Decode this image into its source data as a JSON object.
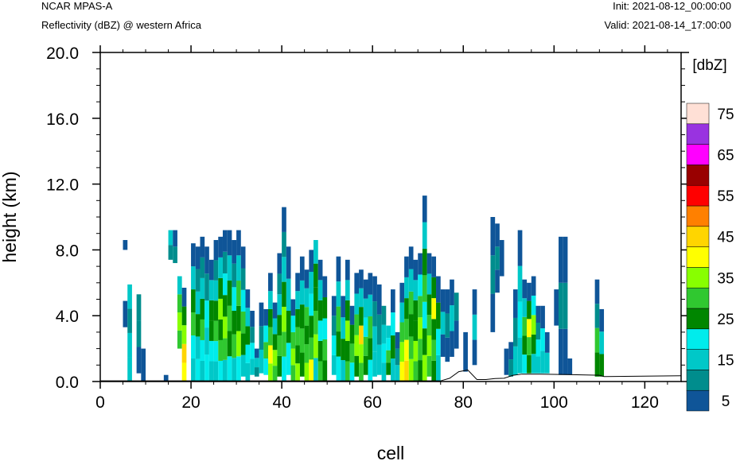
{
  "header": {
    "model": "NCAR MPAS-A",
    "field": "Reflectivity (dBZ) @ western Africa",
    "init": "Init: 2021-08-12_00:00:00",
    "valid": "Valid: 2021-08-14_17:00:00"
  },
  "chart_data": {
    "type": "heatmap",
    "xlabel": "cell",
    "ylabel": "height (km)",
    "xlim": [
      0,
      128
    ],
    "ylim": [
      0,
      20
    ],
    "x_ticks": [
      0,
      20,
      40,
      60,
      80,
      100,
      120
    ],
    "x_tick_labels": [
      "0",
      "20",
      "40",
      "60",
      "80",
      "100",
      "120"
    ],
    "y_ticks": [
      0,
      4,
      8,
      12,
      16,
      20
    ],
    "y_tick_labels": [
      "0.0",
      "4.0",
      "8.0",
      "12.0",
      "16.0",
      "20.0"
    ],
    "colorbar": {
      "title": "[dbZ]",
      "bounds": [
        5,
        75
      ],
      "step": 5,
      "labels": [
        "5",
        "15",
        "25",
        "35",
        "45",
        "55",
        "65",
        "75"
      ],
      "colors": [
        "#0f5598",
        "#008d8d",
        "#00c8c8",
        "#00ecec",
        "#008600",
        "#30c830",
        "#88ff00",
        "#ffff00",
        "#ffd500",
        "#ff8000",
        "#ff0000",
        "#990000",
        "#ff00ff",
        "#9933e0",
        "#ffe0d6"
      ]
    },
    "columns": [
      {
        "x": 5,
        "bottom": 3.3,
        "top": 4.9,
        "levels": [
          0
        ]
      },
      {
        "x": 5,
        "bottom": 8.0,
        "top": 8.6,
        "levels": [
          0
        ]
      },
      {
        "x": 6,
        "bottom": 0.0,
        "top": 5.9,
        "levels": [
          2,
          2,
          1,
          2
        ]
      },
      {
        "x": 8,
        "bottom": 0.5,
        "top": 5.3,
        "levels": [
          0,
          1,
          1
        ]
      },
      {
        "x": 9,
        "bottom": 0.0,
        "top": 2.0,
        "levels": [
          0
        ]
      },
      {
        "x": 14,
        "bottom": 0.0,
        "top": 0.4,
        "levels": [
          0
        ]
      },
      {
        "x": 15,
        "bottom": 7.4,
        "top": 9.2,
        "levels": [
          1,
          2
        ]
      },
      {
        "x": 16,
        "bottom": 7.2,
        "top": 9.2,
        "levels": [
          1,
          0
        ]
      },
      {
        "x": 17,
        "bottom": 2.0,
        "top": 6.4,
        "levels": [
          5,
          6,
          5,
          2
        ]
      },
      {
        "x": 18,
        "bottom": 0.0,
        "top": 5.7,
        "levels": [
          7,
          8,
          6,
          4,
          0
        ]
      },
      {
        "x": 20,
        "bottom": 0.0,
        "top": 8.4,
        "levels": [
          2,
          3,
          5,
          4,
          2,
          0
        ]
      },
      {
        "x": 21,
        "bottom": 0.0,
        "top": 8.2,
        "levels": [
          3,
          2,
          4,
          2,
          1,
          0
        ]
      },
      {
        "x": 22,
        "bottom": 0.0,
        "top": 8.8,
        "levels": [
          2,
          3,
          5,
          4,
          2,
          1,
          0
        ]
      },
      {
        "x": 23,
        "bottom": 0.0,
        "top": 8.2,
        "levels": [
          3,
          2,
          3,
          1,
          0
        ]
      },
      {
        "x": 24,
        "bottom": 0.0,
        "top": 7.4,
        "levels": [
          2,
          3,
          4,
          4,
          2,
          0
        ]
      },
      {
        "x": 25,
        "bottom": 0.0,
        "top": 8.6,
        "levels": [
          2,
          3,
          5,
          4,
          2,
          1,
          0
        ]
      },
      {
        "x": 26,
        "bottom": 0.0,
        "top": 8.8,
        "levels": [
          3,
          5,
          4,
          6,
          4,
          2,
          0
        ]
      },
      {
        "x": 27,
        "bottom": 0.0,
        "top": 9.2,
        "levels": [
          2,
          5,
          6,
          4,
          3,
          1,
          0
        ]
      },
      {
        "x": 28,
        "bottom": 0.0,
        "top": 9.2,
        "levels": [
          3,
          4,
          5,
          4,
          2,
          0
        ]
      },
      {
        "x": 29,
        "bottom": 0.0,
        "top": 8.6,
        "levels": [
          2,
          5,
          4,
          3,
          1,
          0
        ]
      },
      {
        "x": 30,
        "bottom": 0.0,
        "top": 9.2,
        "levels": [
          3,
          6,
          4,
          5,
          2,
          0
        ]
      },
      {
        "x": 31,
        "bottom": 0.3,
        "top": 8.2,
        "levels": [
          2,
          4,
          5,
          3,
          1,
          0
        ]
      },
      {
        "x": 32,
        "bottom": 0.0,
        "top": 5.6,
        "levels": [
          2,
          3,
          4,
          2,
          0
        ]
      },
      {
        "x": 33,
        "bottom": 0.4,
        "top": 4.3,
        "levels": [
          2,
          3,
          1,
          0
        ]
      },
      {
        "x": 34,
        "bottom": 0.3,
        "top": 2.0,
        "levels": [
          1,
          2,
          0
        ]
      },
      {
        "x": 35,
        "bottom": 0.5,
        "top": 4.8,
        "levels": [
          2,
          1,
          0
        ]
      },
      {
        "x": 36,
        "bottom": 0.4,
        "top": 4.4,
        "levels": [
          3,
          5,
          3,
          0
        ]
      },
      {
        "x": 37,
        "bottom": 0.0,
        "top": 6.6,
        "levels": [
          6,
          7,
          5,
          4,
          2,
          0
        ]
      },
      {
        "x": 38,
        "bottom": 0.0,
        "top": 4.8,
        "levels": [
          5,
          6,
          4,
          2,
          0
        ]
      },
      {
        "x": 39,
        "bottom": 0.3,
        "top": 7.8,
        "levels": [
          4,
          5,
          4,
          2,
          1,
          0
        ]
      },
      {
        "x": 40,
        "bottom": 0.0,
        "top": 10.6,
        "levels": [
          3,
          5,
          6,
          4,
          2,
          1,
          0
        ]
      },
      {
        "x": 41,
        "bottom": 0.4,
        "top": 8.2,
        "levels": [
          3,
          4,
          2,
          0
        ]
      },
      {
        "x": 42,
        "bottom": 0.0,
        "top": 5.0,
        "levels": [
          5,
          6,
          5,
          3,
          0
        ]
      },
      {
        "x": 43,
        "bottom": 0.0,
        "top": 6.6,
        "levels": [
          6,
          4,
          5,
          4,
          2,
          0
        ]
      },
      {
        "x": 44,
        "bottom": 0.3,
        "top": 7.6,
        "levels": [
          4,
          5,
          4,
          2,
          0
        ]
      },
      {
        "x": 45,
        "bottom": 0.0,
        "top": 6.8,
        "levels": [
          6,
          5,
          4,
          5,
          2,
          0
        ]
      },
      {
        "x": 46,
        "bottom": 0.0,
        "top": 8.0,
        "levels": [
          7,
          5,
          4,
          3,
          2,
          0
        ]
      },
      {
        "x": 47,
        "bottom": 0.0,
        "top": 8.6,
        "levels": [
          2,
          6,
          5,
          4,
          4,
          2
        ]
      },
      {
        "x": 48,
        "bottom": 0.0,
        "top": 7.4,
        "levels": [
          5,
          4,
          3,
          4,
          2,
          0
        ]
      },
      {
        "x": 49,
        "bottom": 0.0,
        "top": 6.4,
        "levels": [
          4,
          5,
          3,
          4,
          0
        ]
      },
      {
        "x": 51,
        "bottom": 0.4,
        "top": 5.2,
        "levels": [
          2,
          3,
          1,
          0
        ]
      },
      {
        "x": 52,
        "bottom": 0.0,
        "top": 7.6,
        "levels": [
          3,
          4,
          5,
          2,
          0
        ]
      },
      {
        "x": 53,
        "bottom": 0.0,
        "top": 5.2,
        "levels": [
          2,
          4,
          2,
          0
        ]
      },
      {
        "x": 54,
        "bottom": 0.0,
        "top": 7.4,
        "levels": [
          5,
          4,
          6,
          4,
          2,
          0
        ]
      },
      {
        "x": 55,
        "bottom": 0.0,
        "top": 4.6,
        "levels": [
          3,
          5,
          4,
          0
        ]
      },
      {
        "x": 56,
        "bottom": 0.3,
        "top": 6.6,
        "levels": [
          4,
          6,
          5,
          2,
          0
        ]
      },
      {
        "x": 57,
        "bottom": 0.0,
        "top": 6.8,
        "levels": [
          5,
          6,
          8,
          4,
          2,
          0
        ]
      },
      {
        "x": 58,
        "bottom": 0.4,
        "top": 6.2,
        "levels": [
          4,
          5,
          3,
          2,
          0
        ]
      },
      {
        "x": 59,
        "bottom": 0.0,
        "top": 6.6,
        "levels": [
          3,
          4,
          5,
          2,
          0
        ]
      },
      {
        "x": 60,
        "bottom": 0.3,
        "top": 6.4,
        "levels": [
          2,
          2,
          1,
          0
        ]
      },
      {
        "x": 61,
        "bottom": 0.4,
        "top": 5.9,
        "levels": [
          2,
          1,
          0
        ]
      },
      {
        "x": 62,
        "bottom": 0.0,
        "top": 4.6,
        "levels": [
          2,
          3,
          2,
          1
        ]
      },
      {
        "x": 63,
        "bottom": 0.4,
        "top": 3.4,
        "levels": [
          4,
          5,
          3,
          2
        ]
      },
      {
        "x": 64,
        "bottom": 0.0,
        "top": 5.6,
        "levels": [
          2,
          4,
          3,
          0
        ]
      },
      {
        "x": 65,
        "bottom": 0.0,
        "top": 3.0,
        "levels": [
          2,
          1,
          0
        ]
      },
      {
        "x": 66,
        "bottom": 0.0,
        "top": 6.0,
        "levels": [
          7,
          6,
          5,
          2,
          0
        ]
      },
      {
        "x": 67,
        "bottom": 0.0,
        "top": 7.6,
        "levels": [
          8,
          7,
          5,
          4,
          2,
          0
        ]
      },
      {
        "x": 68,
        "bottom": 0.0,
        "top": 8.2,
        "levels": [
          6,
          5,
          4,
          5,
          2,
          0
        ]
      },
      {
        "x": 69,
        "bottom": 0.0,
        "top": 7.4,
        "levels": [
          5,
          6,
          4,
          4,
          2,
          0
        ]
      },
      {
        "x": 70,
        "bottom": 0.0,
        "top": 7.8,
        "levels": [
          4,
          5,
          6,
          5,
          3,
          0
        ]
      },
      {
        "x": 71,
        "bottom": 0.0,
        "top": 11.3,
        "levels": [
          6,
          4,
          3,
          5,
          4,
          2,
          0
        ]
      },
      {
        "x": 72,
        "bottom": 0.3,
        "top": 7.8,
        "levels": [
          5,
          6,
          5,
          4,
          2,
          0
        ]
      },
      {
        "x": 73,
        "bottom": 0.0,
        "top": 7.6,
        "levels": [
          4,
          5,
          4,
          7,
          4,
          0
        ]
      },
      {
        "x": 74,
        "bottom": 0.0,
        "top": 6.4,
        "levels": [
          2,
          3,
          4,
          0
        ]
      },
      {
        "x": 75,
        "bottom": 1.5,
        "top": 5.6,
        "levels": [
          0,
          2,
          0
        ]
      },
      {
        "x": 76,
        "bottom": 1.2,
        "top": 5.6,
        "levels": [
          0,
          1,
          0
        ]
      },
      {
        "x": 77,
        "bottom": 1.5,
        "top": 6.2,
        "levels": [
          0,
          2,
          0
        ]
      },
      {
        "x": 78,
        "bottom": 2.0,
        "top": 5.4,
        "levels": [
          0,
          1
        ]
      },
      {
        "x": 80,
        "bottom": 0.6,
        "top": 3.0,
        "levels": [
          0
        ]
      },
      {
        "x": 82,
        "bottom": 1.0,
        "top": 5.6,
        "levels": [
          0,
          2,
          0
        ]
      },
      {
        "x": 86,
        "bottom": 3.0,
        "top": 10.0,
        "levels": [
          0,
          1,
          0
        ]
      },
      {
        "x": 87,
        "bottom": 5.4,
        "top": 9.6,
        "levels": [
          0,
          1,
          0
        ]
      },
      {
        "x": 88,
        "bottom": 6.4,
        "top": 8.6,
        "levels": [
          0
        ]
      },
      {
        "x": 89,
        "bottom": 0.4,
        "top": 2.0,
        "levels": [
          0
        ]
      },
      {
        "x": 90,
        "bottom": 0.3,
        "top": 2.4,
        "levels": [
          1,
          0
        ]
      },
      {
        "x": 91,
        "bottom": 0.4,
        "top": 5.6,
        "levels": [
          2,
          1,
          0
        ]
      },
      {
        "x": 92,
        "bottom": 0.5,
        "top": 9.2,
        "levels": [
          2,
          3,
          2,
          0
        ]
      },
      {
        "x": 93,
        "bottom": 0.5,
        "top": 6.2,
        "levels": [
          3,
          4,
          5,
          2,
          0
        ]
      },
      {
        "x": 94,
        "bottom": 0.5,
        "top": 6.0,
        "levels": [
          4,
          5,
          7,
          4,
          0
        ]
      },
      {
        "x": 95,
        "bottom": 0.5,
        "top": 6.4,
        "levels": [
          2,
          4,
          6,
          3,
          0
        ]
      },
      {
        "x": 96,
        "bottom": 0.5,
        "top": 4.6,
        "levels": [
          2,
          3,
          1,
          0
        ]
      },
      {
        "x": 97,
        "bottom": 0.5,
        "top": 4.6,
        "levels": [
          2,
          3,
          0
        ]
      },
      {
        "x": 98,
        "bottom": 0.5,
        "top": 3.0,
        "levels": [
          2,
          0
        ]
      },
      {
        "x": 100,
        "bottom": 3.4,
        "top": 5.6,
        "levels": [
          0
        ]
      },
      {
        "x": 101,
        "bottom": 0.4,
        "top": 8.8,
        "levels": [
          0,
          1,
          0
        ]
      },
      {
        "x": 102,
        "bottom": 0.4,
        "top": 8.8,
        "levels": [
          0,
          1,
          0
        ]
      },
      {
        "x": 103,
        "bottom": 0.4,
        "top": 1.4,
        "levels": [
          0
        ]
      },
      {
        "x": 109,
        "bottom": 0.3,
        "top": 6.2,
        "levels": [
          4,
          5,
          1,
          0
        ]
      },
      {
        "x": 110,
        "bottom": 0.3,
        "top": 4.4,
        "levels": [
          4,
          2,
          0
        ]
      }
    ],
    "terrain": [
      [
        0,
        0.04
      ],
      [
        75,
        0.04
      ],
      [
        77,
        0.2
      ],
      [
        79,
        0.6
      ],
      [
        81,
        0.7
      ],
      [
        83,
        0.12
      ],
      [
        85,
        0.12
      ],
      [
        87,
        0.18
      ],
      [
        89,
        0.2
      ],
      [
        91,
        0.38
      ],
      [
        93,
        0.45
      ],
      [
        97,
        0.45
      ],
      [
        103,
        0.42
      ],
      [
        110,
        0.38
      ],
      [
        111,
        0.3
      ],
      [
        128,
        0.35
      ]
    ]
  }
}
